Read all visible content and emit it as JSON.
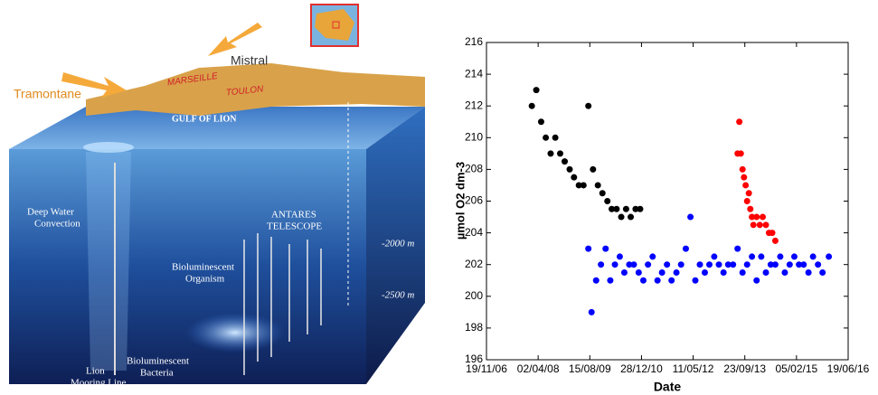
{
  "diagram": {
    "labels": {
      "tramontane": "Tramontane",
      "mistral": "Mistral",
      "marseille": "MARSEILLE",
      "toulon": "TOULON",
      "gulf": "GULF OF LION",
      "convection": [
        "Deep Water",
        "Convection"
      ],
      "antares": [
        "ANTARES",
        "TELESCOPE"
      ],
      "depth1": "-2000 m",
      "depth2": "-2500 m",
      "organism": [
        "Bioluminescent",
        "Organism"
      ],
      "bacteria": [
        "Bioluminescent",
        "Bacteria"
      ],
      "mooring": [
        "Lion",
        "Mooring  Line"
      ]
    }
  },
  "chart_data": {
    "type": "scatter",
    "xlabel": "Date",
    "ylabel": "µmol O2 dm-3",
    "xlim": [
      "19/11/06",
      "19/06/16"
    ],
    "xticks": [
      "19/11/06",
      "02/04/08",
      "15/08/09",
      "28/12/10",
      "11/05/12",
      "23/09/13",
      "05/02/15",
      "19/06/16"
    ],
    "ylim": [
      196,
      216
    ],
    "yticks": [
      196,
      198,
      200,
      202,
      204,
      206,
      208,
      210,
      212,
      214,
      216
    ],
    "series": [
      {
        "color": "#000000",
        "x": [
          "01/02/08",
          "15/03/08",
          "01/05/08",
          "15/06/08",
          "01/08/08",
          "15/09/08",
          "01/11/08",
          "15/12/08",
          "01/02/09",
          "15/03/09",
          "01/05/09",
          "15/06/09",
          "01/08/09",
          "15/09/09",
          "01/11/09",
          "15/12/09",
          "01/02/10",
          "15/03/10",
          "01/05/10",
          "15/06/10",
          "01/08/10",
          "15/09/10",
          "01/11/10",
          "15/12/10"
        ],
        "values": [
          212,
          213,
          211,
          210,
          209,
          210,
          209,
          208.5,
          208,
          207.5,
          207,
          207,
          212,
          208,
          207,
          206.5,
          206,
          205.5,
          205.5,
          205,
          205.5,
          205,
          205.5,
          205.5
        ]
      },
      {
        "color": "#0000ff",
        "x": [
          "01/08/09",
          "01/09/09",
          "15/10/09",
          "01/12/09",
          "15/01/10",
          "01/03/10",
          "15/04/10",
          "01/06/10",
          "15/07/10",
          "01/09/10",
          "15/10/10",
          "01/12/10",
          "15/01/11",
          "01/03/11",
          "15/04/11",
          "01/06/11",
          "15/07/11",
          "01/09/11",
          "15/10/11",
          "01/12/11",
          "15/01/12",
          "01/03/12",
          "15/04/12",
          "01/06/12",
          "15/07/12",
          "01/09/12",
          "15/10/12",
          "01/12/12",
          "15/01/13",
          "01/03/13",
          "15/04/13",
          "01/06/13",
          "15/07/13",
          "01/09/13",
          "15/10/13",
          "01/12/13",
          "15/01/14",
          "01/03/14",
          "15/04/14",
          "01/06/14",
          "15/07/14",
          "01/09/14",
          "15/10/14",
          "01/12/14",
          "15/01/15",
          "01/03/15",
          "15/04/15",
          "01/06/15",
          "15/07/15",
          "01/09/15",
          "15/10/15",
          "15/12/15"
        ],
        "values": [
          203,
          199,
          201,
          202,
          203,
          201,
          202,
          202.5,
          201.5,
          202,
          202,
          201.5,
          201,
          202,
          202.5,
          201,
          201.5,
          202,
          201,
          201.5,
          202,
          203,
          205,
          201,
          202,
          201.5,
          202,
          202.5,
          202,
          201.5,
          202,
          202,
          203,
          201.5,
          202,
          202.5,
          201,
          202.5,
          201.5,
          202,
          202,
          202.5,
          201.5,
          202,
          202.5,
          202,
          202,
          201.5,
          202.5,
          202,
          201.5,
          202.5
        ]
      },
      {
        "color": "#ff0000",
        "x": [
          "15/07/13",
          "01/08/13",
          "15/08/13",
          "01/09/13",
          "15/09/13",
          "01/10/13",
          "15/10/13",
          "01/11/13",
          "15/11/13",
          "01/12/13",
          "15/12/13",
          "15/01/14",
          "15/02/14",
          "15/03/14",
          "15/04/14",
          "15/05/14",
          "15/06/14",
          "15/07/14"
        ],
        "values": [
          209,
          211,
          209,
          208,
          207.5,
          207,
          206,
          206.5,
          205.5,
          205,
          204.5,
          205,
          204.5,
          205,
          204.5,
          204,
          204,
          203.5
        ]
      }
    ]
  }
}
